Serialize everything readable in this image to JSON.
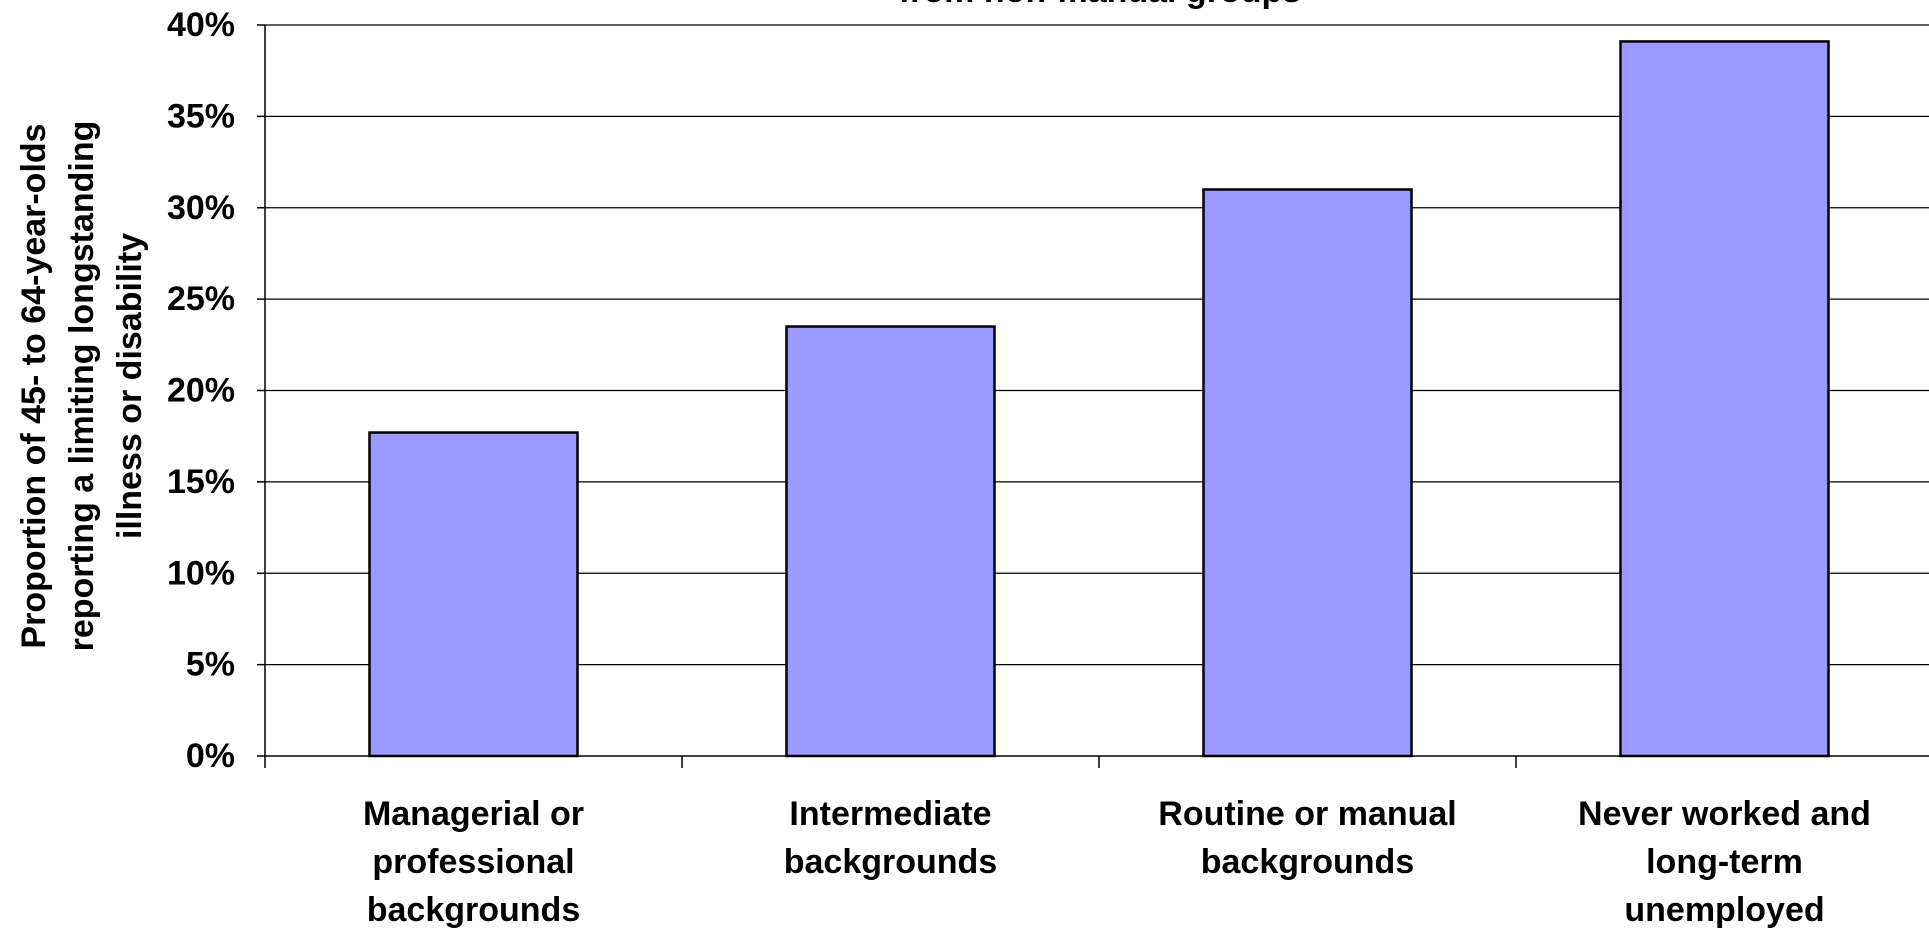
{
  "chart_data": {
    "type": "bar",
    "title": "from non-manual groups",
    "ylabel_lines": [
      "Proportion of 45- to 64-year-olds",
      "reporting a limiting longstanding",
      "illness or disability"
    ],
    "categories": [
      [
        "Managerial or",
        "professional",
        "backgrounds"
      ],
      [
        "Intermediate",
        "backgrounds"
      ],
      [
        "Routine or manual",
        "backgrounds"
      ],
      [
        "Never worked and",
        "long-term",
        "unemployed"
      ]
    ],
    "values": [
      17.7,
      23.5,
      31.0,
      39.1
    ],
    "ylim": [
      0,
      40
    ],
    "yticks": [
      "0%",
      "5%",
      "10%",
      "15%",
      "20%",
      "25%",
      "30%",
      "35%",
      "40%"
    ],
    "grid": true,
    "bar_color": "#9999ff"
  }
}
